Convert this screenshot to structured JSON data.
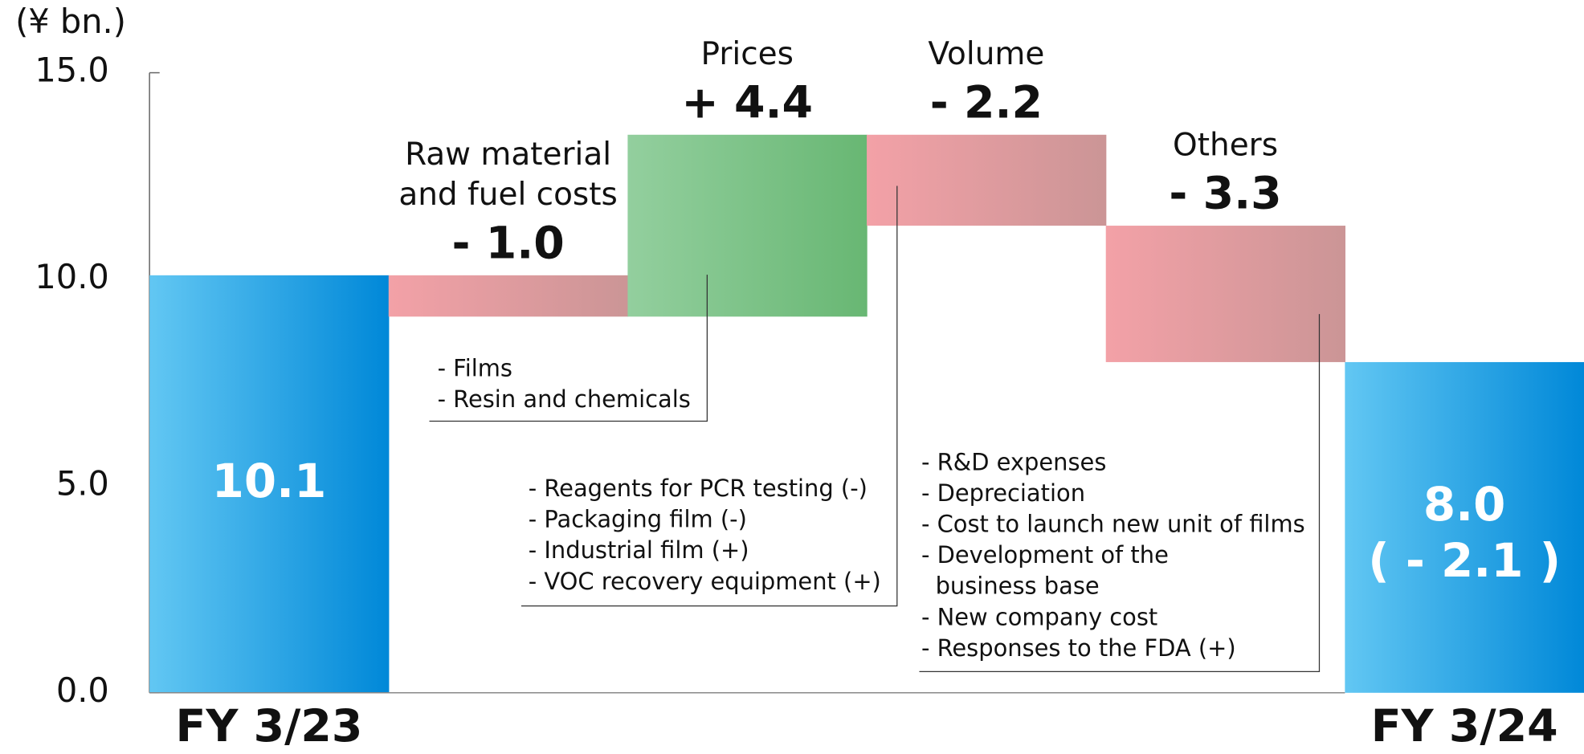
{
  "chart_data": {
    "type": "waterfall",
    "y_label": "(¥ bn.)",
    "categories": [
      [
        "FY 3/23"
      ],
      [
        "Raw material",
        "and fuel costs"
      ],
      [
        "Prices"
      ],
      [
        "Volume"
      ],
      [
        "Others"
      ],
      [
        "FY 3/24"
      ]
    ],
    "values": [
      10.1,
      -1.0,
      4.4,
      -2.2,
      -3.3,
      8.0
    ],
    "value_labels": [
      "10.1",
      "- 1.0",
      "+ 4.4",
      "- 2.2",
      "- 3.3",
      "8.0"
    ],
    "is_total": [
      true,
      false,
      false,
      false,
      false,
      true
    ],
    "total_change_label": "( - 2.1 )",
    "notes": [
      null,
      null,
      [
        "- Films",
        "- Resin and chemicals"
      ],
      [
        "- Reagents for PCR testing (-)",
        "- Packaging film (-)",
        "- Industrial film (+)",
        "- VOC recovery equipment (+)"
      ],
      [
        "- R&D expenses",
        "- Depreciation",
        "- Cost to launch new unit of films",
        "- Development of the",
        "business base",
        "- New company cost",
        "- Responses to the FDA (+)"
      ],
      null
    ],
    "colors": {
      "total": [
        "#62c7f3",
        "#0088d8"
      ],
      "increase": [
        "#93cf9e",
        "#68b773"
      ],
      "decrease": [
        "#f3a1a7",
        "#cb9596"
      ]
    },
    "ylim": [
      0,
      15
    ],
    "yticks": [
      {
        "value": 0,
        "label": "0.0"
      },
      {
        "value": 5,
        "label": "5.0"
      },
      {
        "value": 10,
        "label": "10.0"
      },
      {
        "value": 15,
        "label": "15.0"
      }
    ]
  }
}
